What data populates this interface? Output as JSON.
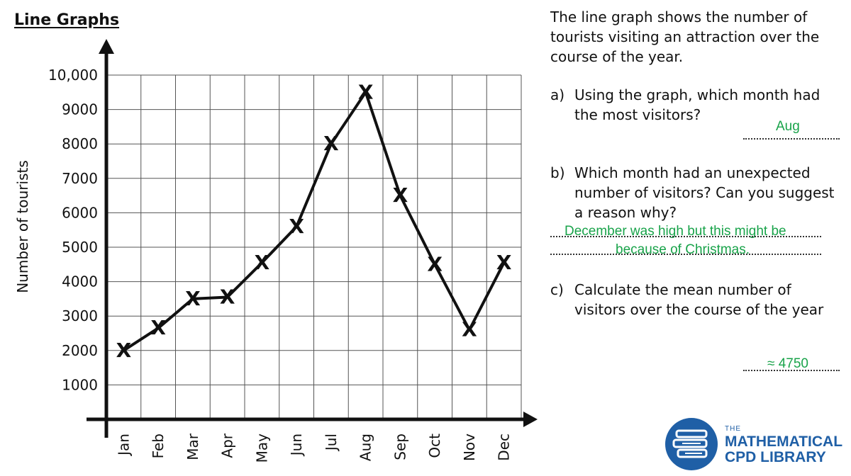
{
  "page": {
    "title": "Line Graphs"
  },
  "chart_data": {
    "type": "line",
    "title": "",
    "xlabel": "",
    "ylabel": "Number of tourists",
    "categories": [
      "Jan",
      "Feb",
      "Mar",
      "Apr",
      "May",
      "Jun",
      "Jul",
      "Aug",
      "Sep",
      "Oct",
      "Nov",
      "Dec"
    ],
    "values": [
      2000,
      2650,
      3500,
      3550,
      4550,
      5600,
      8000,
      9500,
      6500,
      4500,
      2600,
      4550
    ],
    "marker": "X",
    "ylim": [
      0,
      10000
    ],
    "yticks": [
      "1000",
      "2000",
      "3000",
      "4000",
      "5000",
      "6000",
      "7000",
      "8000",
      "9000",
      "10,000"
    ],
    "grid": true,
    "line_color": "#111111"
  },
  "questions": {
    "intro": "The line graph shows the number of tourists visiting an attraction over the course of the year.",
    "a": {
      "letter": "a)",
      "text": "Using the graph, which month had the most visitors?",
      "answer": "Aug"
    },
    "b": {
      "letter": "b)",
      "text": "Which month had an unexpected number of visitors? Can you suggest a reason why?",
      "answer_line1": "December was high but this might be",
      "answer_line2": "because of Christmas."
    },
    "c": {
      "letter": "c)",
      "text": "Calculate the mean number of visitors over the course of the year",
      "answer": "≈ 4750"
    }
  },
  "logo": {
    "small": "THE",
    "line1": "MATHEMATICAL",
    "line2": "CPD LIBRARY",
    "color": "#1f5fa6"
  },
  "answer_color": "#19a34a"
}
